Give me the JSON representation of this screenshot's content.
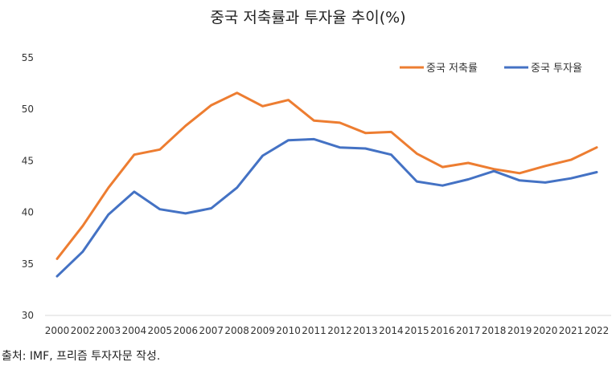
{
  "chart_data": {
    "type": "line",
    "title": "중국 저축률과 투자율 추이(%)",
    "xlabel": "",
    "ylabel": "",
    "x": [
      "2000",
      "2002",
      "2003",
      "2004",
      "2005",
      "2006",
      "2007",
      "2008",
      "2009",
      "2010",
      "2011",
      "2012",
      "2013",
      "2014",
      "2015",
      "2016",
      "2017",
      "2018",
      "2019",
      "2020",
      "2021",
      "2022"
    ],
    "ylim": [
      30,
      55
    ],
    "yticks": [
      "30",
      "35",
      "40",
      "45",
      "50",
      "55"
    ],
    "grid": false,
    "legend_position": "top-right",
    "series": [
      {
        "name": "중국 저축률",
        "color": "#ED7D31",
        "values": [
          35.5,
          38.7,
          42.4,
          45.6,
          46.1,
          48.4,
          50.4,
          51.6,
          50.3,
          50.9,
          48.9,
          48.7,
          47.7,
          47.8,
          45.7,
          44.4,
          44.8,
          44.2,
          43.8,
          44.5,
          45.1,
          46.3
        ]
      },
      {
        "name": "중국 투자율",
        "color": "#4472C4",
        "values": [
          33.8,
          36.2,
          39.8,
          42.0,
          40.3,
          39.9,
          40.4,
          42.4,
          45.5,
          47.0,
          47.1,
          46.3,
          46.2,
          45.6,
          43.0,
          42.6,
          43.2,
          44.0,
          43.1,
          42.9,
          43.3,
          43.9
        ]
      }
    ]
  },
  "source": "출처: IMF, 프리즘 투자자문 작성."
}
